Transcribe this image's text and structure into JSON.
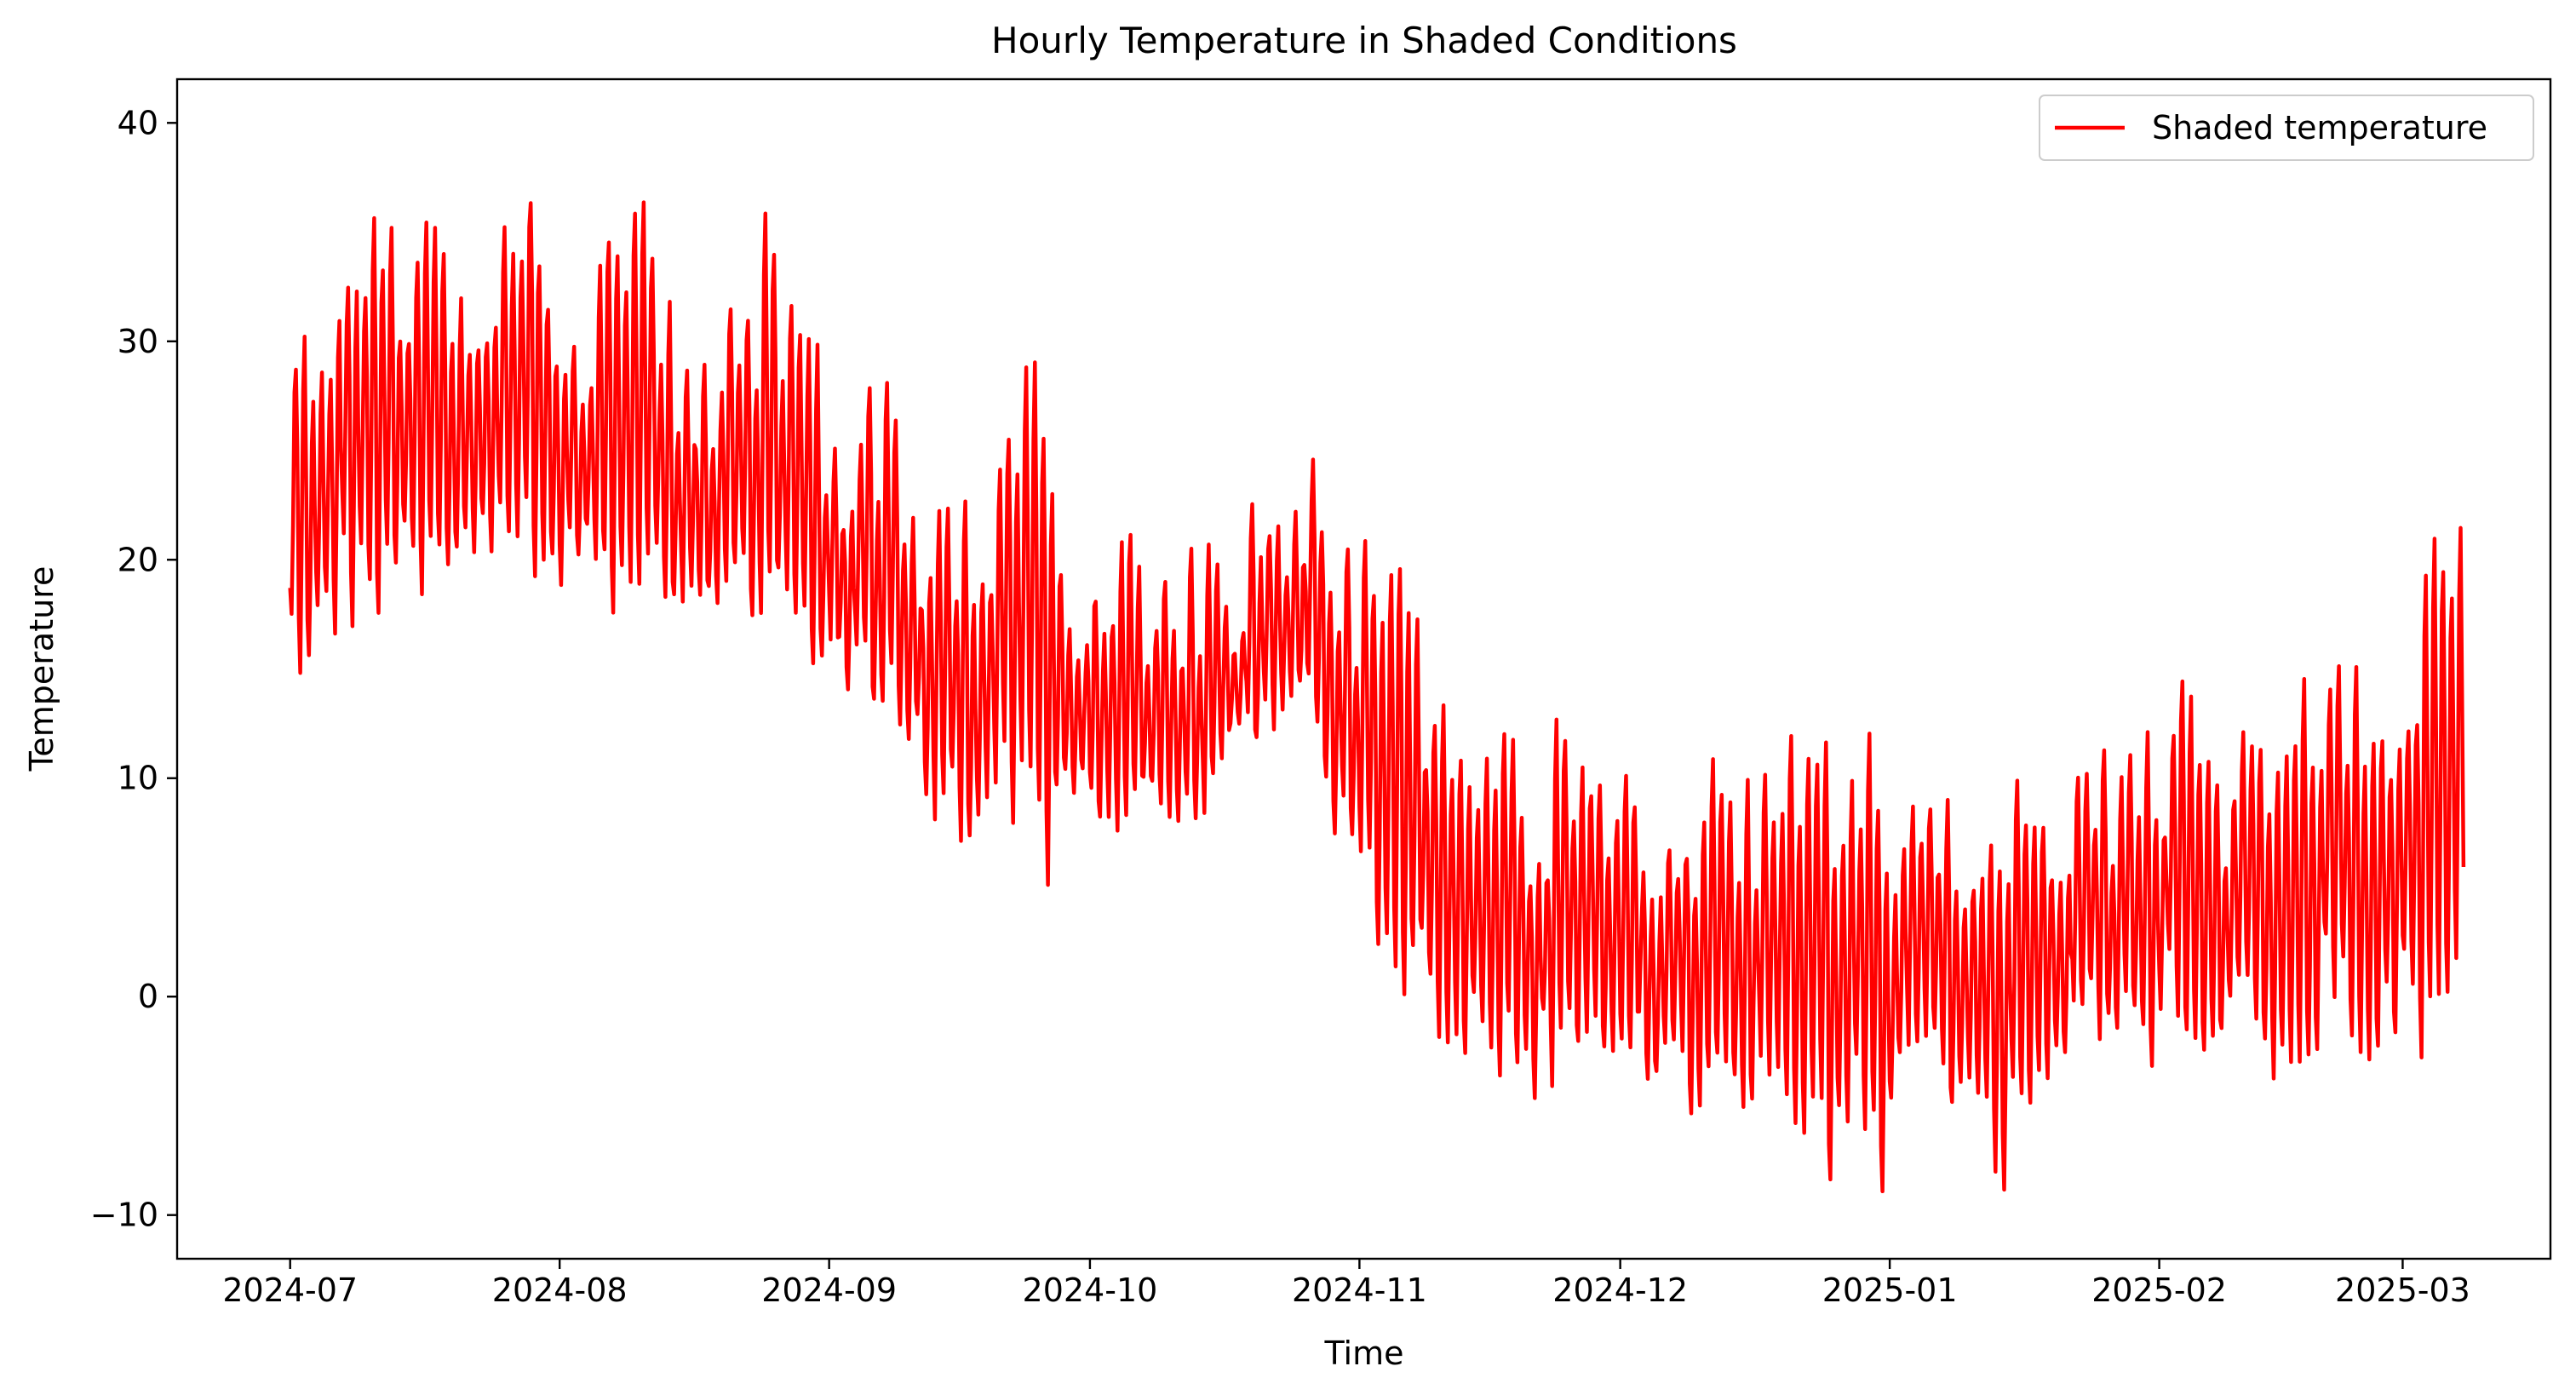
{
  "chart_data": {
    "type": "line",
    "title": "Hourly Temperature in Shaded Conditions",
    "xlabel": "Time",
    "ylabel": "Temperature",
    "xlim": [
      "2024-06-18",
      "2025-03-18"
    ],
    "ylim": [
      -12,
      42
    ],
    "x_ticks": [
      "2024-07",
      "2024-08",
      "2024-09",
      "2024-10",
      "2024-11",
      "2024-12",
      "2025-01",
      "2025-02",
      "2025-03"
    ],
    "y_ticks": [
      -10,
      0,
      10,
      20,
      30,
      40
    ],
    "grid": false,
    "legend": {
      "position": "top-right",
      "entries": [
        "Shaded temperature"
      ]
    },
    "series": [
      {
        "name": "Shaded temperature",
        "color": "#ff0000",
        "x": [
          "2024-07-01",
          "2024-07-04",
          "2024-07-07",
          "2024-07-10",
          "2024-07-13",
          "2024-07-16",
          "2024-07-19",
          "2024-07-22",
          "2024-07-25",
          "2024-07-28",
          "2024-07-31",
          "2024-08-03",
          "2024-08-06",
          "2024-08-09",
          "2024-08-12",
          "2024-08-15",
          "2024-08-18",
          "2024-08-21",
          "2024-08-24",
          "2024-08-27",
          "2024-08-30",
          "2024-09-02",
          "2024-09-05",
          "2024-09-08",
          "2024-09-11",
          "2024-09-14",
          "2024-09-17",
          "2024-09-20",
          "2024-09-23",
          "2024-09-26",
          "2024-09-29",
          "2024-10-02",
          "2024-10-05",
          "2024-10-08",
          "2024-10-11",
          "2024-10-14",
          "2024-10-17",
          "2024-10-20",
          "2024-10-23",
          "2024-10-26",
          "2024-10-29",
          "2024-11-01",
          "2024-11-04",
          "2024-11-07",
          "2024-11-10",
          "2024-11-13",
          "2024-11-16",
          "2024-11-19",
          "2024-11-22",
          "2024-11-25",
          "2024-11-28",
          "2024-12-01",
          "2024-12-04",
          "2024-12-07",
          "2024-12-10",
          "2024-12-13",
          "2024-12-16",
          "2024-12-19",
          "2024-12-22",
          "2024-12-25",
          "2024-12-28",
          "2024-12-31",
          "2025-01-03",
          "2025-01-06",
          "2025-01-09",
          "2025-01-12",
          "2025-01-15",
          "2025-01-18",
          "2025-01-21",
          "2025-01-24",
          "2025-01-27",
          "2025-01-30",
          "2025-02-02",
          "2025-02-05",
          "2025-02-08",
          "2025-02-11",
          "2025-02-14",
          "2025-02-17",
          "2025-02-20",
          "2025-02-23",
          "2025-02-26",
          "2025-03-01",
          "2025-03-04",
          "2025-03-07",
          "2025-03-08"
        ],
        "max": [
          32,
          34,
          36,
          39,
          37,
          39,
          36,
          35,
          37,
          37,
          34,
          31,
          37,
          37,
          36,
          32,
          30,
          35,
          36,
          33,
          31,
          27,
          29,
          29,
          21,
          23,
          24,
          25,
          31,
          26,
          17,
          24,
          25,
          19,
          21,
          21,
          20,
          27,
          21,
          25,
          24,
          24,
          22,
          20,
          17,
          15,
          14,
          11,
          12,
          15,
          12,
          11,
          10,
          9,
          9,
          14,
          12,
          13,
          14,
          12,
          12,
          13,
          10,
          9,
          10,
          10,
          12,
          10,
          12,
          13,
          12,
          12,
          15,
          15,
          12,
          14,
          13,
          15,
          18,
          17,
          15,
          19,
          22,
          24,
          23
        ],
        "min": [
          14,
          14,
          17,
          17,
          17,
          18,
          17,
          18,
          18,
          19,
          19,
          18,
          17,
          17,
          18,
          17,
          17,
          16,
          15,
          16,
          14,
          13,
          14,
          10,
          9,
          8,
          5,
          9,
          7,
          4,
          9,
          8,
          7,
          8,
          7,
          8,
          12,
          11,
          13,
          14,
          6,
          5,
          -1,
          -1,
          -2,
          -4,
          -4,
          -6,
          -5,
          -4,
          -5,
          -6,
          -4,
          -3,
          -7,
          -5,
          -5,
          -7,
          -8,
          -9,
          -6,
          -10,
          -3,
          -4,
          -7,
          -8,
          -9,
          -6,
          -3,
          -2,
          -2,
          -3,
          -3,
          -3,
          -4,
          -3,
          -5,
          -4,
          -4,
          -4,
          -3,
          -3,
          -3,
          -3,
          -2
        ],
        "mean": [
          20,
          22,
          24,
          26,
          25,
          26,
          25,
          25,
          25,
          25,
          24,
          23,
          24,
          24,
          23,
          22,
          21,
          22,
          22,
          21,
          20,
          18,
          18,
          17,
          15,
          14,
          13,
          14,
          15,
          13,
          12,
          12,
          12,
          11,
          11,
          11,
          13,
          15,
          14,
          15,
          12,
          10,
          8,
          6,
          4,
          3,
          2,
          1,
          2,
          3,
          2,
          1,
          1,
          0,
          -1,
          0,
          0,
          -1,
          -1,
          -2,
          -1,
          -3,
          0,
          1,
          -1,
          -1,
          -2,
          -1,
          1,
          2,
          2,
          2,
          4,
          4,
          3,
          4,
          4,
          5,
          6,
          6,
          6,
          7,
          8,
          9,
          10
        ]
      }
    ]
  }
}
